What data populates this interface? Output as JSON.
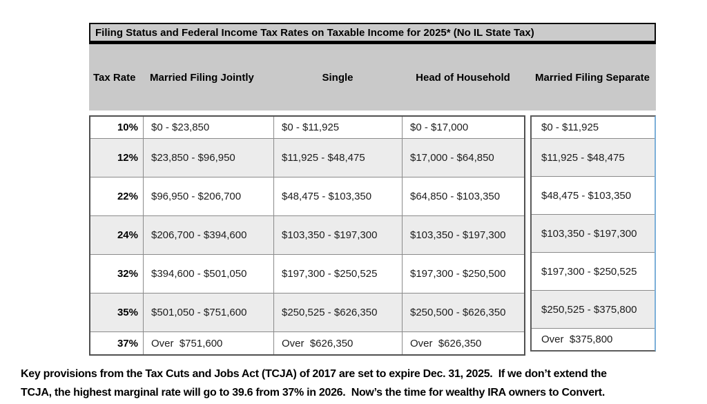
{
  "table": {
    "title": "Filing Status and Federal Income Tax Rates on Taxable Income for 2025* (No IL State Tax)",
    "columns": [
      "Tax Rate",
      "Married Filing Jointly",
      "Single",
      "Head of Household",
      "Married Filing Separate"
    ],
    "rows": [
      [
        "10%",
        "$0 - $23,850",
        "$0 - $11,925",
        "$0 - $17,000",
        "$0 - $11,925"
      ],
      [
        "12%",
        "$23,850 - $96,950",
        "$11,925 - $48,475",
        "$17,000 - $64,850",
        "$11,925 - $48,475"
      ],
      [
        "22%",
        "$96,950 - $206,700",
        "$48,475 - $103,350",
        "$64,850 - $103,350",
        "$48,475 - $103,350"
      ],
      [
        "24%",
        "$206,700 - $394,600",
        "$103,350 - $197,300",
        "$103,350 - $197,300",
        "$103,350 - $197,300"
      ],
      [
        "32%",
        "$394,600 - $501,050",
        "$197,300 - $250,525",
        "$197,300 - $250,500",
        "$197,300 - $250,525"
      ],
      [
        "35%",
        "$501,050 - $751,600",
        "$250,525 - $626,350",
        "$250,500 - $626,350",
        "$250,525 - $375,800"
      ],
      [
        "37%",
        "Over  $751,600",
        "Over  $626,350",
        "Over  $626,350",
        "Over  $375,800"
      ]
    ]
  },
  "footer": {
    "lines": [
      "Key provisions from the Tax Cuts and Jobs Act (TCJA) of 2017 are set to expire Dec. 31, 2025.  If we don’t extend the",
      "TCJA, the highest marginal rate will go to 39.6 from 37% in 2026.  Now’s the time for wealthy IRA owners to Convert."
    ]
  },
  "colors": {
    "header_gray": "#c9c9c9",
    "title_gray": "#cbcbcb",
    "row_alt_gray": "#ececec",
    "grid_border": "#8a8a8a",
    "outer_border": "#4f4f4f",
    "mfs_accent_border": "#7bafd8"
  }
}
